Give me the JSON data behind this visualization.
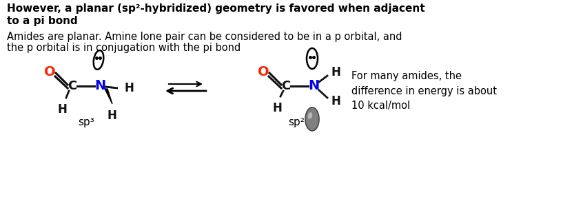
{
  "bg_color": "#ffffff",
  "title_line1": "However, a planar (sp²-hybridized) geometry is favored when adjacent",
  "title_line2": "to a pi bond",
  "subtitle_line1": "Amides are planar. Amine lone pair can be considered to be in a p orbital, and",
  "subtitle_line2": "the p orbital is in conjugation with the pi bond",
  "sp3_label": "sp³",
  "sp2_label": "sp²",
  "note_text": "For many amides, the\ndifference in energy is about\n10 kcal/mol",
  "color_O": "#ff2200",
  "color_N": "#0000ee",
  "color_C": "#111111",
  "color_H": "#111111",
  "color_bond": "#111111"
}
